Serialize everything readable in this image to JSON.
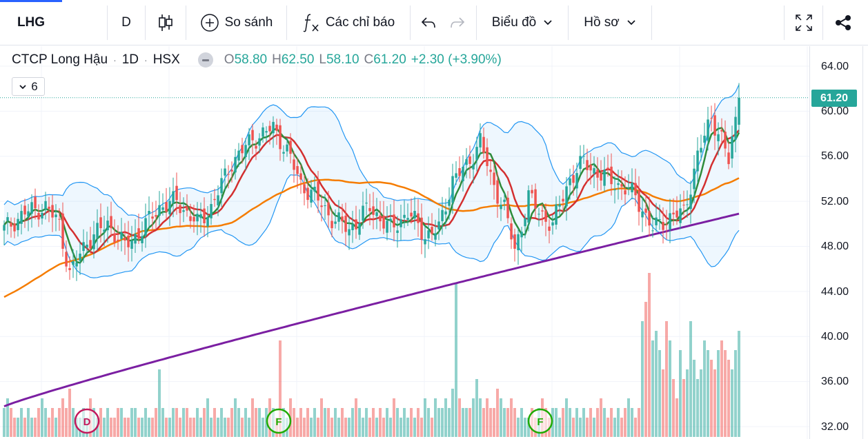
{
  "toolbar": {
    "symbol": "LHG",
    "interval": "D",
    "compare_label": "So sánh",
    "indicators_label": "Các chỉ báo",
    "chart_type_label": "Biểu đồ",
    "profile_label": "Hồ sơ"
  },
  "legend": {
    "name": "CTCP Long Hậu",
    "interval": "1D",
    "exchange": "HSX",
    "open_key": "O",
    "open": "58.80",
    "high_key": "H",
    "high": "62.50",
    "low_key": "L",
    "low": "58.10",
    "close_key": "C",
    "close": "61.20",
    "change": "+2.30 (+3.90%)",
    "indicator_count": "6"
  },
  "price_axis": {
    "ticks": [
      "64.00",
      "60.00",
      "56.00",
      "52.00",
      "48.00",
      "44.00",
      "40.00",
      "36.00",
      "32.00"
    ],
    "last_price": "61.20"
  },
  "events": [
    {
      "type": "dividend",
      "label": "D"
    },
    {
      "type": "financial",
      "label": "F"
    },
    {
      "type": "financial",
      "label": "F"
    }
  ],
  "colors": {
    "up": "#26a69a",
    "down": "#ef5350",
    "ma_green": "#2e8b3a",
    "ma_red": "#d32f2f",
    "ma_orange": "#f57c00",
    "ma_purple": "#7b1fa2",
    "bollinger": "#2196f3",
    "accent": "#2962ff"
  },
  "chart_data": {
    "type": "candlestick",
    "symbol": "LHG",
    "ylim": [
      31.2,
      66.0
    ],
    "price_anchors": [
      [
        0,
        49.5
      ],
      [
        6,
        51.0
      ],
      [
        12,
        51.5
      ],
      [
        16,
        50.0
      ],
      [
        19,
        45.5
      ],
      [
        24,
        48.5
      ],
      [
        30,
        50.0
      ],
      [
        35,
        48.0
      ],
      [
        40,
        49.5
      ],
      [
        45,
        51.5
      ],
      [
        50,
        52.0
      ],
      [
        56,
        50.0
      ],
      [
        60,
        51.5
      ],
      [
        66,
        55.5
      ],
      [
        72,
        57.5
      ],
      [
        78,
        58.5
      ],
      [
        82,
        56.5
      ],
      [
        86,
        53.5
      ],
      [
        90,
        52.5
      ],
      [
        95,
        50.5
      ],
      [
        100,
        49.5
      ],
      [
        106,
        51.5
      ],
      [
        112,
        49.5
      ],
      [
        117,
        51.0
      ],
      [
        122,
        49.0
      ],
      [
        126,
        49.5
      ],
      [
        130,
        54.0
      ],
      [
        134,
        55.0
      ],
      [
        138,
        57.5
      ],
      [
        141,
        54.0
      ],
      [
        145,
        51.5
      ],
      [
        148,
        47.5
      ],
      [
        152,
        52.5
      ],
      [
        155,
        51.0
      ],
      [
        159,
        50.0
      ],
      [
        164,
        54.0
      ],
      [
        168,
        55.5
      ],
      [
        172,
        54.5
      ],
      [
        178,
        53.5
      ],
      [
        183,
        52.5
      ],
      [
        188,
        49.5
      ],
      [
        192,
        50.5
      ],
      [
        197,
        51.0
      ],
      [
        201,
        56.0
      ],
      [
        205,
        59.5
      ],
      [
        208,
        57.5
      ],
      [
        210,
        55.5
      ],
      [
        213,
        61.2
      ]
    ],
    "volume": [
      3,
      4,
      3,
      2,
      2,
      3,
      2,
      3,
      2,
      2,
      3,
      4,
      3,
      2,
      3,
      2,
      3,
      4,
      3,
      5,
      3,
      2,
      2,
      3,
      2,
      4,
      3,
      2,
      3,
      2,
      3,
      2,
      2,
      3,
      3,
      2,
      2,
      3,
      3,
      2,
      2,
      3,
      2,
      2,
      3,
      7,
      3,
      2,
      2,
      3,
      3,
      2,
      3,
      3,
      2,
      2,
      3,
      2,
      3,
      4,
      2,
      3,
      2,
      3,
      2,
      2,
      3,
      4,
      3,
      2,
      3,
      2,
      4,
      3,
      3,
      2,
      3,
      4,
      3,
      2,
      10,
      3,
      2,
      4,
      3,
      2,
      3,
      2,
      3,
      2,
      3,
      2,
      4,
      3,
      3,
      2,
      3,
      2,
      3,
      2,
      2,
      3,
      4,
      3,
      2,
      3,
      2,
      3,
      2,
      3,
      2,
      3,
      2,
      4,
      3,
      2,
      3,
      2,
      3,
      2,
      3,
      2,
      4,
      3,
      2,
      4,
      3,
      3,
      4,
      3,
      5,
      16,
      4,
      3,
      3,
      3,
      4,
      6,
      4,
      3,
      4,
      3,
      3,
      5,
      4,
      3,
      3,
      4,
      3,
      2,
      3,
      2,
      2,
      3,
      2,
      3,
      4,
      3,
      2,
      3,
      3,
      2,
      3,
      4,
      3,
      2,
      3,
      2,
      3,
      2,
      3,
      2,
      3,
      4,
      3,
      2,
      3,
      2,
      3,
      2,
      3,
      4,
      3,
      2,
      3,
      12,
      14,
      17,
      10,
      11,
      9,
      7,
      12,
      10,
      6,
      4,
      9,
      6,
      7,
      12,
      8,
      6,
      7,
      10,
      9,
      8,
      7,
      9,
      10,
      9,
      8,
      7,
      9,
      11,
      10
    ]
  }
}
